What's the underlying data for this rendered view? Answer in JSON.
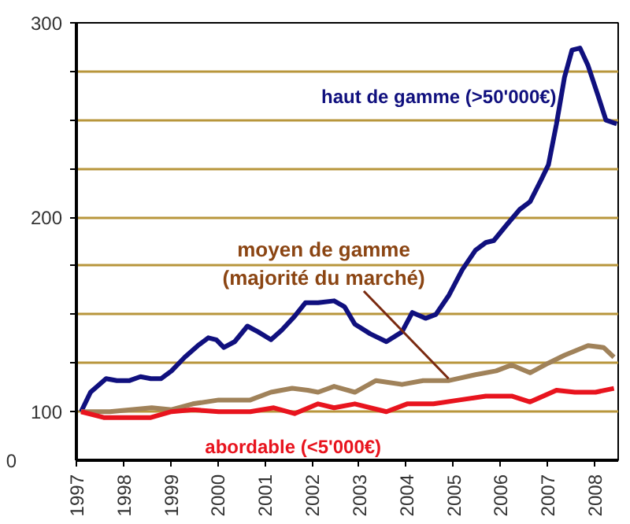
{
  "chart_data": {
    "type": "line",
    "xlim": [
      1997,
      2008.5
    ],
    "ylim": [
      75,
      300
    ],
    "xticks": [
      1997,
      1998,
      1999,
      2000,
      2001,
      2002,
      2003,
      2004,
      2005,
      2006,
      2007,
      2008
    ],
    "yticks": [
      100,
      {
        "value": 125,
        "label": null
      },
      {
        "value": 150,
        "label": null
      },
      {
        "value": 175,
        "label": null
      },
      200,
      {
        "value": 225,
        "label": null
      },
      {
        "value": 250,
        "label": null
      },
      {
        "value": 275,
        "label": null
      },
      300
    ],
    "annotations": [
      "0"
    ],
    "grid": "y",
    "line_style": "solid",
    "series": [
      {
        "name": "haut de gamme (>50'000€)",
        "color": "#10107e",
        "x": [
          1997.1,
          1997.3,
          1997.63,
          1997.86,
          1998.13,
          1998.36,
          1998.58,
          1998.8,
          1999.02,
          1999.3,
          1999.58,
          1999.8,
          1999.97,
          2000.13,
          2000.36,
          2000.63,
          2000.86,
          2001.13,
          2001.36,
          2001.63,
          2001.86,
          2002.13,
          2002.47,
          2002.69,
          2002.91,
          2003.24,
          2003.58,
          2003.91,
          2004.13,
          2004.41,
          2004.63,
          2004.91,
          2005.19,
          2005.47,
          2005.69,
          2005.86,
          2006.13,
          2006.41,
          2006.63,
          2006.86,
          2007.02,
          2007.19,
          2007.36,
          2007.52,
          2007.69,
          2007.86,
          2008.08,
          2008.24,
          2008.47
        ],
        "values": [
          100,
          110,
          117,
          116,
          116,
          118,
          117,
          117,
          121,
          128,
          134,
          138,
          137,
          133,
          136,
          144,
          141,
          137,
          142,
          149,
          156,
          156,
          157,
          154,
          145,
          140,
          136,
          141,
          151,
          148,
          150,
          160,
          173,
          183,
          187,
          188,
          196,
          204,
          208,
          219,
          227,
          248,
          272,
          286,
          287,
          278,
          262,
          250,
          248
        ]
      },
      {
        "name": "moyen de gamme (majorité du marché)",
        "color": "#a0825a",
        "x": [
          1997.1,
          1997.71,
          1998.6,
          1999.02,
          1999.47,
          2000.02,
          2000.36,
          2000.69,
          2001.13,
          2001.58,
          2001.91,
          2002.13,
          2002.47,
          2002.91,
          2003.36,
          2003.91,
          2004.36,
          2004.91,
          2005.47,
          2005.91,
          2006.24,
          2006.63,
          2007.02,
          2007.36,
          2007.86,
          2008.19,
          2008.41
        ],
        "values": [
          100,
          100,
          102,
          101,
          104,
          106,
          106,
          106,
          110,
          112,
          111,
          110,
          113,
          110,
          116,
          114,
          116,
          116,
          119,
          121,
          124,
          120,
          125,
          129,
          134,
          133,
          128
        ]
      },
      {
        "name": "abordable (<5'000€)",
        "color": "#e8141e",
        "x": [
          1997.1,
          1997.58,
          1998.58,
          1999.02,
          1999.47,
          2000.02,
          2000.69,
          2001.19,
          2001.63,
          2002.13,
          2002.47,
          2002.91,
          2003.58,
          2004.02,
          2004.58,
          2005.13,
          2005.69,
          2006.24,
          2006.63,
          2007.19,
          2007.58,
          2008.02,
          2008.41
        ],
        "values": [
          100,
          97,
          97,
          100,
          101,
          100,
          100,
          102,
          99,
          104,
          102,
          104,
          100,
          104,
          104,
          106,
          108,
          108,
          105,
          111,
          110,
          110,
          112
        ]
      }
    ]
  }
}
